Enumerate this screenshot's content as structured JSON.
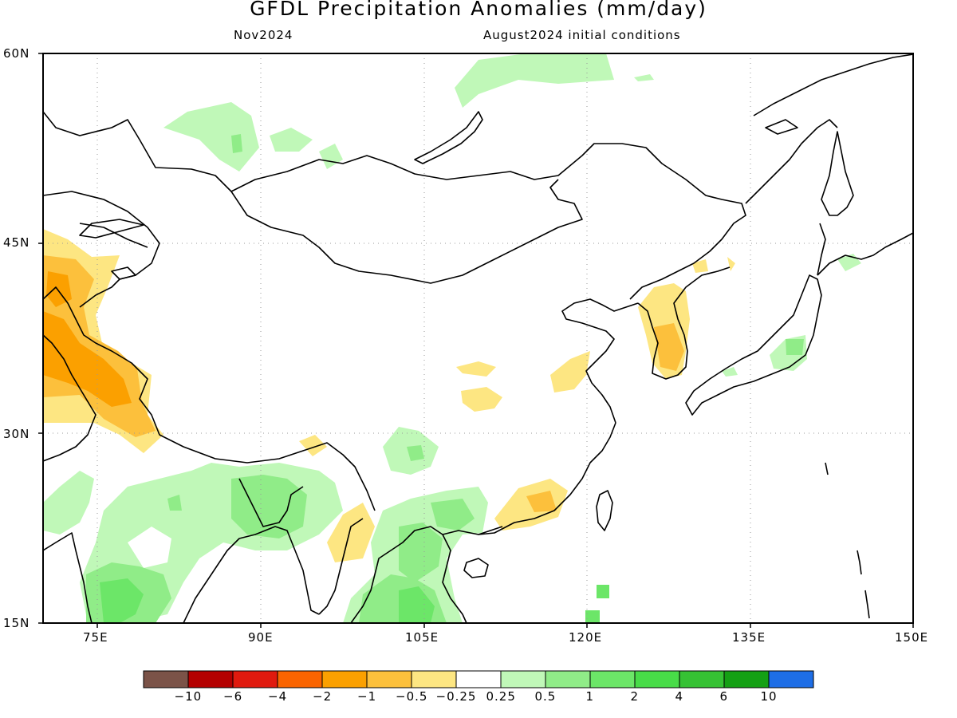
{
  "header": {
    "title": "GFDL Precipitation Anomalies (mm/day)",
    "target_month": "Nov2024",
    "init_conditions": "August2024 initial conditions"
  },
  "map": {
    "lat_labels": [
      "60N",
      "45N",
      "30N",
      "15N"
    ],
    "lon_labels": [
      "75E",
      "90E",
      "105E",
      "120E",
      "135E",
      "150E"
    ],
    "lat_range": [
      15,
      60
    ],
    "lon_range": [
      70,
      150
    ],
    "grid": "dotted"
  },
  "colorbar": {
    "colors": [
      "#7b5348",
      "#b40000",
      "#e01a0e",
      "#fa6400",
      "#fba000",
      "#fcc03c",
      "#fde682",
      "#ffffff",
      "#c0f8b8",
      "#90ec88",
      "#6ce668",
      "#48dc48",
      "#36c234",
      "#14a014",
      "#1e6ee6"
    ],
    "labels": [
      "-10",
      "-6",
      "-4",
      "-2",
      "-1",
      "-0.5",
      "-0.25",
      "0.25",
      "0.5",
      "1",
      "2",
      "4",
      "6",
      "10"
    ]
  }
}
